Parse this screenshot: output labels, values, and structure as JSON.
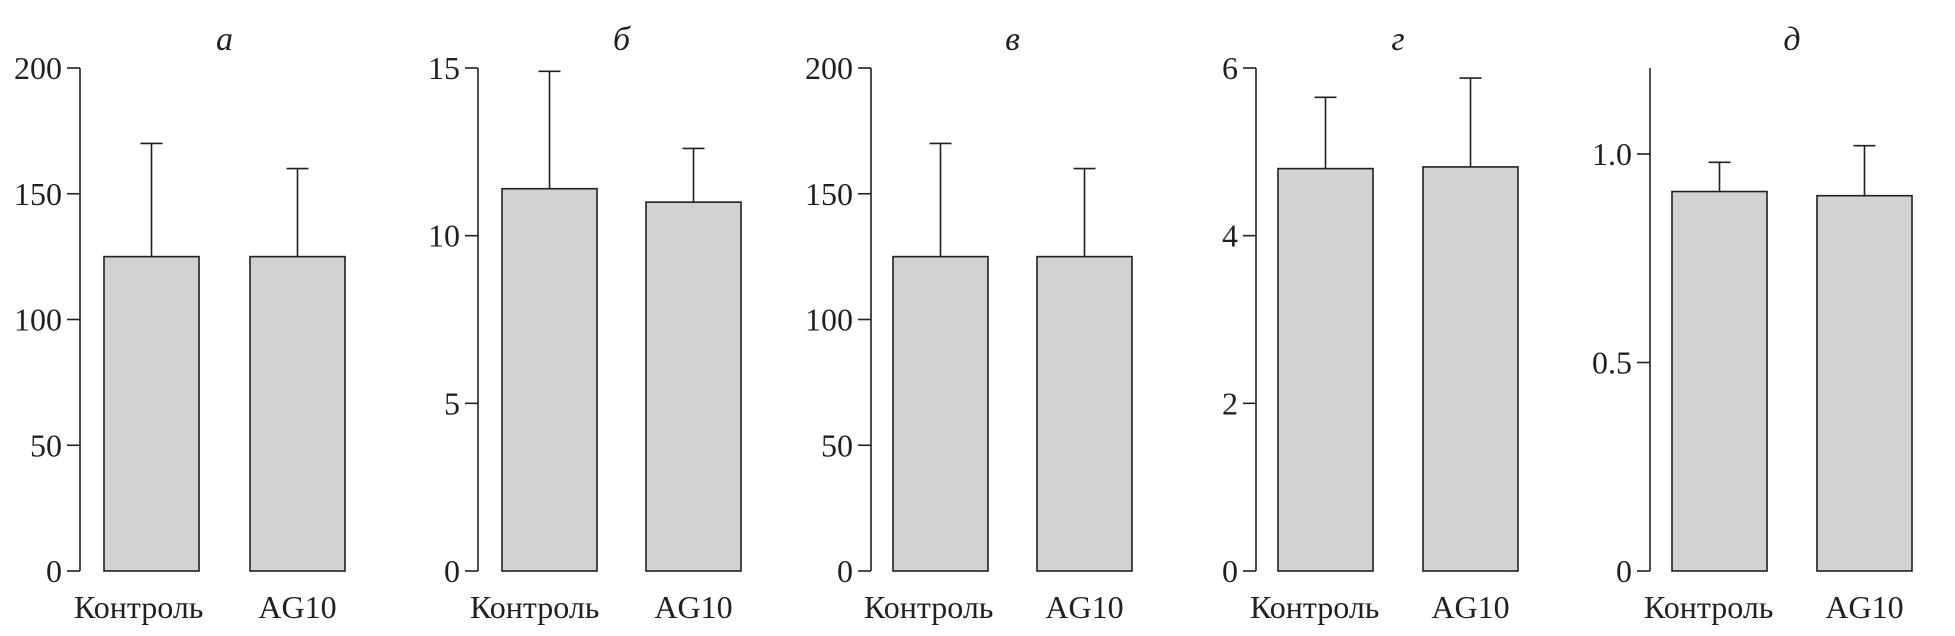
{
  "colors": {
    "bar_fill": "#d1d2d4",
    "ink": "#231f20",
    "background": "#ffffff"
  },
  "chart_data": [
    {
      "type": "bar",
      "title": "а",
      "categories": [
        "Контроль",
        "AG10"
      ],
      "values": [
        125,
        125
      ],
      "error_upper": [
        170,
        160
      ],
      "ylim": [
        0,
        200
      ],
      "yticks": [
        0,
        50,
        100,
        150,
        200
      ],
      "ytick_labels": [
        "0",
        "50",
        "100",
        "150",
        "200"
      ],
      "xlabel": "",
      "ylabel": "",
      "grid": false
    },
    {
      "type": "bar",
      "title": "б",
      "categories": [
        "Контроль",
        "AG10"
      ],
      "values": [
        11.4,
        11.0
      ],
      "error_upper": [
        14.9,
        12.6
      ],
      "ylim": [
        0,
        15
      ],
      "yticks": [
        0,
        5,
        10,
        15
      ],
      "ytick_labels": [
        "0",
        "5",
        "10",
        "15"
      ],
      "xlabel": "",
      "ylabel": "",
      "grid": false
    },
    {
      "type": "bar",
      "title": "в",
      "categories": [
        "Контроль",
        "AG10"
      ],
      "values": [
        125,
        125
      ],
      "error_upper": [
        170,
        160
      ],
      "ylim": [
        0,
        200
      ],
      "yticks": [
        0,
        50,
        100,
        150,
        200
      ],
      "ytick_labels": [
        "0",
        "50",
        "100",
        "150",
        "200"
      ],
      "xlabel": "",
      "ylabel": "",
      "grid": false
    },
    {
      "type": "bar",
      "title": "г",
      "categories": [
        "Контроль",
        "AG10"
      ],
      "values": [
        4.8,
        4.82
      ],
      "error_upper": [
        5.65,
        5.88
      ],
      "ylim": [
        0,
        6
      ],
      "yticks": [
        0,
        2,
        4,
        6
      ],
      "ytick_labels": [
        "0",
        "2",
        "4",
        "6"
      ],
      "xlabel": "",
      "ylabel": "",
      "grid": false
    },
    {
      "type": "bar",
      "title": "д",
      "categories": [
        "Контроль",
        "AG10"
      ],
      "values": [
        0.91,
        0.9
      ],
      "error_upper": [
        0.98,
        1.02
      ],
      "ylim": [
        0,
        1.2
      ],
      "yticks": [
        0,
        0.5,
        1.0
      ],
      "ytick_labels": [
        "0",
        "0.5",
        "1.0"
      ],
      "xlabel": "",
      "ylabel": "",
      "grid": false
    }
  ]
}
